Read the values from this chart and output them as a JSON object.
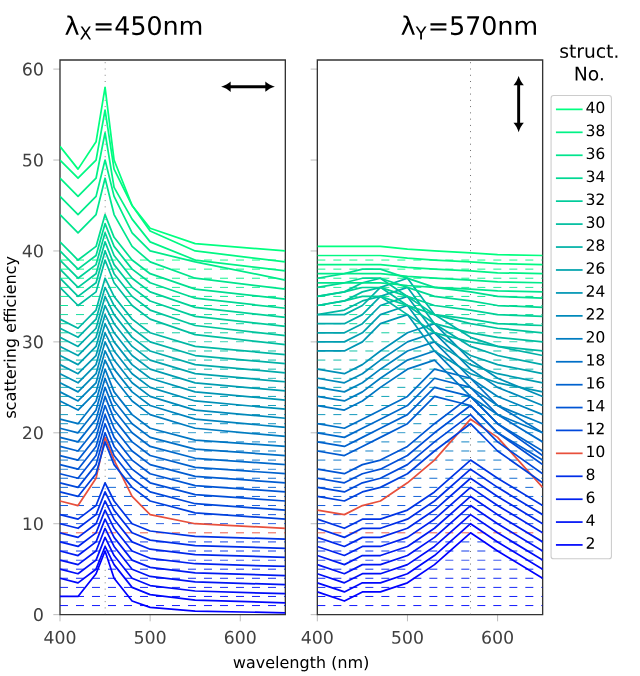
{
  "chart_data": [
    {
      "type": "line",
      "title": "λ$_{X}$=450nm",
      "xlabel": "wavelength (nm)",
      "ylabel": "scattering efficiency",
      "xlim": [
        400,
        650
      ],
      "xticks": [
        400,
        500,
        600
      ],
      "ylim": [
        0,
        61
      ],
      "yticks": [
        0,
        10,
        20,
        30,
        40,
        50,
        60
      ],
      "x": [
        400,
        420,
        440,
        450,
        460,
        480,
        500,
        550,
        650
      ],
      "series": [
        {
          "color": "#0000ff",
          "values": [
            2,
            2,
            4.5,
            7,
            4,
            1.5,
            0.8,
            0.4,
            0.2
          ]
        },
        {
          "color": "#0007fc",
          "values": [
            4,
            3.5,
            5,
            7.5,
            5.5,
            3,
            2.2,
            1.6,
            1.3
          ]
        },
        {
          "color": "#000df8",
          "values": [
            5,
            4.5,
            6,
            8.5,
            6.5,
            4,
            3.2,
            2.6,
            2.3
          ]
        },
        {
          "color": "#0014f5",
          "values": [
            6,
            5.5,
            7,
            9.5,
            7.5,
            5,
            4.2,
            3.6,
            3.3
          ]
        },
        {
          "color": "#001af2",
          "values": [
            7,
            6.5,
            8,
            10.5,
            8.5,
            6,
            5.2,
            4.6,
            4.3
          ]
        },
        {
          "color": "#0021ef",
          "values": [
            8,
            7.5,
            9,
            11.5,
            9.5,
            7,
            6.2,
            5.6,
            5.3
          ]
        },
        {
          "color": "#0027eb",
          "values": [
            9,
            8.5,
            10,
            12.5,
            10.5,
            8,
            7.2,
            6.6,
            6.3
          ]
        },
        {
          "color": "#002ee8",
          "values": [
            10,
            9.5,
            11,
            13.5,
            11.5,
            9,
            8.2,
            7.6,
            7.3
          ]
        },
        {
          "color": "#0034e5",
          "values": [
            11,
            10.5,
            12,
            14.5,
            12.5,
            10,
            9.2,
            8.6,
            8.3
          ]
        },
        {
          "color": "#e8503c",
          "values": [
            12.5,
            12,
            15,
            19.5,
            17,
            13,
            11,
            10,
            9.5
          ]
        },
        {
          "color": "#0041de",
          "values": [
            13.5,
            13,
            15.5,
            19,
            16.5,
            14,
            12.5,
            11.2,
            10.5
          ]
        },
        {
          "color": "#0048db",
          "values": [
            14.5,
            14,
            16.5,
            20,
            17.5,
            15,
            13.5,
            12.2,
            11.5
          ]
        },
        {
          "color": "#004ed8",
          "values": [
            15.5,
            15,
            17.5,
            21,
            18.5,
            16,
            14.5,
            13.2,
            12.5
          ]
        },
        {
          "color": "#0055d4",
          "values": [
            16.5,
            16,
            18.5,
            22,
            19.5,
            17,
            15.5,
            14.2,
            13.5
          ]
        },
        {
          "color": "#005cd1",
          "values": [
            17.5,
            17,
            19.5,
            23,
            20.5,
            18,
            16.5,
            15.2,
            14.5
          ]
        },
        {
          "color": "#0062ce",
          "values": [
            18.5,
            18,
            20.5,
            24,
            21.5,
            19,
            17.5,
            16.2,
            15.5
          ]
        },
        {
          "color": "#0069cb",
          "values": [
            19.5,
            19,
            21.5,
            25,
            22.5,
            20,
            18.5,
            17.2,
            16.5
          ]
        },
        {
          "color": "#006fc7",
          "values": [
            20.5,
            20,
            22.5,
            26,
            23.5,
            21,
            19.5,
            18.2,
            17.5
          ]
        },
        {
          "color": "#0076c4",
          "values": [
            21.5,
            21,
            23.5,
            27,
            24.5,
            22,
            20.5,
            19.2,
            18.5
          ]
        },
        {
          "color": "#007cc1",
          "values": [
            23.5,
            22.5,
            24.5,
            28,
            26,
            23.5,
            22,
            20.5,
            19.6
          ]
        },
        {
          "color": "#0083be",
          "values": [
            24.5,
            23.5,
            25.5,
            29,
            27,
            24.5,
            23,
            21.5,
            20.6
          ]
        },
        {
          "color": "#0089ba",
          "values": [
            25.5,
            24.5,
            26.5,
            30,
            28,
            25.5,
            24,
            22.5,
            21.6
          ]
        },
        {
          "color": "#0090b7",
          "values": [
            26.5,
            25.5,
            27.5,
            31,
            29,
            26.5,
            25,
            23.5,
            22.6
          ]
        },
        {
          "color": "#0096b4",
          "values": [
            27.5,
            26.5,
            28.5,
            32,
            30,
            27.5,
            26,
            24.5,
            23.6
          ]
        },
        {
          "color": "#009db1",
          "values": [
            28.5,
            27.5,
            29.5,
            33,
            31,
            28.5,
            27,
            25.5,
            24.6
          ]
        },
        {
          "color": "#00a3ad",
          "values": [
            29.5,
            28.5,
            30.5,
            34,
            32,
            29.5,
            28,
            26.5,
            25.6
          ]
        },
        {
          "color": "#00aaaa",
          "values": [
            30.5,
            29.5,
            31.5,
            35,
            33,
            30.5,
            29,
            27.5,
            26.6
          ]
        },
        {
          "color": "#00b1a7",
          "values": [
            31.5,
            30.5,
            32.5,
            36,
            34,
            31.5,
            30,
            28.5,
            27.6
          ]
        },
        {
          "color": "#00b7a4",
          "values": [
            32.5,
            31.5,
            33.5,
            37,
            35,
            32.5,
            31,
            29.5,
            28.6
          ]
        },
        {
          "color": "#00bea0",
          "values": [
            36,
            34,
            35.5,
            39,
            36.5,
            34,
            32.5,
            30.8,
            29.7
          ]
        },
        {
          "color": "#00c49d",
          "values": [
            37,
            35,
            36.5,
            40,
            37.5,
            35,
            33.5,
            31.8,
            30.7
          ]
        },
        {
          "color": "#00cb9a",
          "values": [
            38,
            36,
            37.5,
            41,
            38.5,
            36,
            34.5,
            32.8,
            31.7
          ]
        },
        {
          "color": "#00d197",
          "values": [
            39,
            37,
            38.5,
            42,
            39.5,
            37,
            35.5,
            33.8,
            32.7
          ]
        },
        {
          "color": "#00d893",
          "values": [
            40,
            38,
            39.5,
            43,
            40.5,
            38,
            36.5,
            34.8,
            33.7
          ]
        },
        {
          "color": "#00de90",
          "values": [
            41,
            39,
            40.5,
            44,
            41.5,
            39,
            37.5,
            35.8,
            34.7
          ]
        },
        {
          "color": "#00e58d",
          "values": [
            44,
            42,
            44,
            48,
            44,
            40.5,
            38.8,
            37,
            35.8
          ]
        },
        {
          "color": "#00eb8a",
          "values": [
            46,
            44,
            46,
            50,
            46,
            42,
            40,
            38.8,
            36.8
          ]
        },
        {
          "color": "#00f286",
          "values": [
            48,
            46,
            48,
            53,
            47,
            43.5,
            41,
            39,
            37.8
          ]
        },
        {
          "color": "#00f883",
          "values": [
            50,
            48,
            50,
            55.5,
            49,
            45,
            42.2,
            40,
            38.8
          ]
        },
        {
          "color": "#00ff80",
          "values": [
            51.5,
            49,
            52,
            58,
            50,
            45,
            42.5,
            40.8,
            40
          ]
        }
      ],
      "ref_lines": [
        {
          "axis": "x",
          "value": 450,
          "color": "#555555",
          "line_style": "dotted"
        },
        {
          "axis": "y",
          "value": 1,
          "color": "#0007fc",
          "line_style": "dashed"
        },
        {
          "axis": "y",
          "value": 2,
          "color": "#000df8",
          "line_style": "dashed"
        },
        {
          "axis": "y",
          "value": 3,
          "color": "#0014f5",
          "line_style": "dashed"
        },
        {
          "axis": "y",
          "value": 4,
          "color": "#001af2",
          "line_style": "dashed"
        },
        {
          "axis": "y",
          "value": 5,
          "color": "#0021ef",
          "line_style": "dashed"
        },
        {
          "axis": "y",
          "value": 6,
          "color": "#0027eb",
          "line_style": "dashed"
        },
        {
          "axis": "y",
          "value": 7,
          "color": "#002ee8",
          "line_style": "dashed"
        },
        {
          "axis": "y",
          "value": 8,
          "color": "#0034e5",
          "line_style": "dashed"
        },
        {
          "axis": "y",
          "value": 9,
          "color": "#e8503c",
          "line_style": "dashed"
        },
        {
          "axis": "y",
          "value": 10,
          "color": "#0041de",
          "line_style": "dashed"
        },
        {
          "axis": "y",
          "value": 11,
          "color": "#0048db",
          "line_style": "dashed"
        },
        {
          "axis": "y",
          "value": 12,
          "color": "#004ed8",
          "line_style": "dashed"
        },
        {
          "axis": "y",
          "value": 13,
          "color": "#0055d4",
          "line_style": "dashed"
        },
        {
          "axis": "y",
          "value": 14,
          "color": "#005cd1",
          "line_style": "dashed"
        },
        {
          "axis": "y",
          "value": 15,
          "color": "#0062ce",
          "line_style": "dashed"
        },
        {
          "axis": "y",
          "value": 16,
          "color": "#0069cb",
          "line_style": "dashed"
        },
        {
          "axis": "y",
          "value": 17,
          "color": "#006fc7",
          "line_style": "dashed"
        },
        {
          "axis": "y",
          "value": 18,
          "color": "#0076c4",
          "line_style": "dashed"
        },
        {
          "axis": "y",
          "value": 19,
          "color": "#007cc1",
          "line_style": "dashed"
        },
        {
          "axis": "y",
          "value": 20,
          "color": "#0083be",
          "line_style": "dashed"
        },
        {
          "axis": "y",
          "value": 21,
          "color": "#0089ba",
          "line_style": "dashed"
        },
        {
          "axis": "y",
          "value": 22,
          "color": "#0090b7",
          "line_style": "dashed"
        },
        {
          "axis": "y",
          "value": 23,
          "color": "#0096b4",
          "line_style": "dashed"
        },
        {
          "axis": "y",
          "value": 24,
          "color": "#009db1",
          "line_style": "dashed"
        },
        {
          "axis": "y",
          "value": 25,
          "color": "#00a3ad",
          "line_style": "dashed"
        },
        {
          "axis": "y",
          "value": 26,
          "color": "#00aaaa",
          "line_style": "dashed"
        },
        {
          "axis": "y",
          "value": 27,
          "color": "#00b1a7",
          "line_style": "dashed"
        },
        {
          "axis": "y",
          "value": 28,
          "color": "#00b7a4",
          "line_style": "dashed"
        },
        {
          "axis": "y",
          "value": 29,
          "color": "#00bea0",
          "line_style": "dashed"
        },
        {
          "axis": "y",
          "value": 30,
          "color": "#00c49d",
          "line_style": "dashed"
        },
        {
          "axis": "y",
          "value": 31,
          "color": "#00cb9a",
          "line_style": "dashed"
        },
        {
          "axis": "y",
          "value": 32,
          "color": "#00d197",
          "line_style": "dashed"
        },
        {
          "axis": "y",
          "value": 33,
          "color": "#00d893",
          "line_style": "dashed"
        },
        {
          "axis": "y",
          "value": 34,
          "color": "#00de90",
          "line_style": "dashed"
        },
        {
          "axis": "y",
          "value": 35,
          "color": "#00e58d",
          "line_style": "dashed"
        },
        {
          "axis": "y",
          "value": 36,
          "color": "#00eb8a",
          "line_style": "dashed"
        },
        {
          "axis": "y",
          "value": 37,
          "color": "#00f286",
          "line_style": "dashed"
        },
        {
          "axis": "y",
          "value": 38,
          "color": "#00f883",
          "line_style": "dashed"
        },
        {
          "axis": "y",
          "value": 39,
          "color": "#00ff80",
          "line_style": "dashed"
        }
      ]
    },
    {
      "type": "line",
      "title": "λ$_{Y}$=570nm",
      "legend_title": "struct. No.",
      "legend": "right",
      "tick_labels": "x",
      "xlim": [
        400,
        650
      ],
      "xticks": [
        400,
        500,
        600
      ],
      "ylim": [
        0,
        61
      ],
      "yticks": [
        0,
        10,
        20,
        30,
        40,
        50,
        60
      ],
      "x": [
        400,
        430,
        450,
        470,
        500,
        530,
        570,
        600,
        650
      ],
      "series": [
        {
          "color": "#0000ff",
          "values": [
            2.5,
            1.5,
            2.5,
            2.5,
            3.5,
            5.5,
            9,
            7,
            4
          ]
        },
        {
          "name": "2",
          "color": "#0007fc",
          "values": [
            3.5,
            2.5,
            3.5,
            3.5,
            4.5,
            6.5,
            10,
            8,
            5
          ]
        },
        {
          "color": "#000df8",
          "values": [
            4.5,
            3.5,
            4.5,
            4.5,
            5.5,
            7.5,
            11,
            9,
            6
          ]
        },
        {
          "name": "4",
          "color": "#0014f5",
          "values": [
            5.5,
            4.5,
            5.5,
            5.5,
            6.5,
            8.5,
            12,
            10,
            7
          ]
        },
        {
          "color": "#001af2",
          "values": [
            6.5,
            5.5,
            6.5,
            6.5,
            7.5,
            9.5,
            13,
            11,
            8
          ]
        },
        {
          "name": "6",
          "color": "#0021ef",
          "values": [
            7.5,
            6.5,
            7.5,
            7.5,
            8.5,
            10.5,
            14,
            12,
            9
          ]
        },
        {
          "color": "#0027eb",
          "values": [
            8.5,
            7.5,
            8.5,
            8.5,
            9.5,
            11.5,
            15,
            13,
            10
          ]
        },
        {
          "name": "8",
          "color": "#002ee8",
          "values": [
            9.5,
            8.5,
            9.5,
            9.5,
            10.5,
            12.5,
            16,
            14,
            11
          ]
        },
        {
          "color": "#0034e5",
          "values": [
            10.5,
            9.5,
            10.5,
            10.5,
            11.5,
            13.5,
            17,
            15,
            12
          ]
        },
        {
          "name": "10",
          "color": "#e8503c",
          "values": [
            11.5,
            11,
            12,
            12.5,
            14.5,
            17,
            21.5,
            19.5,
            14
          ]
        },
        {
          "color": "#0041de",
          "values": [
            13,
            12.5,
            13.5,
            14,
            15.5,
            18,
            21,
            18,
            14.5
          ]
        },
        {
          "name": "12",
          "color": "#0048db",
          "values": [
            14,
            13.5,
            14.5,
            15,
            16.5,
            19,
            22,
            19,
            15.5
          ]
        },
        {
          "color": "#004ed8",
          "values": [
            15,
            14.5,
            15.5,
            16,
            17.5,
            20,
            23,
            20,
            16.5
          ]
        },
        {
          "name": "14",
          "color": "#0055d4",
          "values": [
            16,
            15.5,
            16.5,
            17,
            18.5,
            21,
            24,
            21,
            17.5
          ]
        },
        {
          "color": "#005cd1",
          "values": [
            18,
            17.5,
            18.5,
            19.5,
            21,
            24,
            23,
            20,
            17
          ]
        },
        {
          "name": "16",
          "color": "#0062ce",
          "values": [
            19,
            18.5,
            19.5,
            20.5,
            22,
            25,
            24,
            21,
            18
          ]
        },
        {
          "color": "#0069cb",
          "values": [
            20,
            19.5,
            20.5,
            21.5,
            23,
            26,
            25,
            22,
            19
          ]
        },
        {
          "name": "18",
          "color": "#006fc7",
          "values": [
            21,
            20.5,
            21.5,
            22.5,
            24,
            27,
            26,
            23,
            20
          ]
        },
        {
          "color": "#0076c4",
          "values": [
            23,
            22.5,
            23.5,
            25,
            27,
            28,
            24,
            22,
            20
          ]
        },
        {
          "name": "20",
          "color": "#007cc1",
          "values": [
            24,
            23.5,
            24.5,
            26,
            28,
            29,
            25,
            23,
            21
          ]
        },
        {
          "color": "#0083be",
          "values": [
            25,
            24.5,
            25.5,
            27,
            29,
            30,
            26,
            24,
            22
          ]
        },
        {
          "name": "22",
          "color": "#0089ba",
          "values": [
            26,
            25.5,
            26.5,
            28,
            30,
            31,
            27,
            25,
            23
          ]
        },
        {
          "color": "#0090b7",
          "values": [
            27,
            26.5,
            27.5,
            29,
            31,
            32,
            28,
            26,
            24
          ]
        },
        {
          "name": "24",
          "color": "#0096b4",
          "values": [
            29,
            29,
            30,
            32,
            33,
            29,
            26.5,
            25.5,
            24.5
          ]
        },
        {
          "color": "#009db1",
          "values": [
            30,
            30,
            31,
            33,
            34,
            30,
            27.5,
            26.5,
            25.5
          ]
        },
        {
          "name": "26",
          "color": "#00a3ad",
          "values": [
            31,
            31,
            32,
            34,
            35,
            31,
            28.5,
            27.5,
            26.5
          ]
        },
        {
          "color": "#00aaaa",
          "values": [
            32,
            32,
            33,
            35,
            36,
            32,
            29.5,
            28.5,
            27.5
          ]
        },
        {
          "name": "28",
          "color": "#00b1a7",
          "values": [
            33,
            33,
            34,
            36,
            37,
            33,
            30.5,
            29.5,
            28.5
          ]
        },
        {
          "color": "#00b7a4",
          "values": [
            33,
            33.5,
            34.5,
            35,
            33,
            31,
            30,
            29.5,
            29
          ]
        },
        {
          "name": "30",
          "color": "#00bea0",
          "values": [
            34,
            34.5,
            35.5,
            36,
            34,
            32,
            31,
            30.5,
            30
          ]
        },
        {
          "color": "#00c49d",
          "values": [
            35,
            35.5,
            36.5,
            37,
            35,
            33,
            32,
            31.5,
            31
          ]
        },
        {
          "name": "32",
          "color": "#00cb9a",
          "values": [
            34,
            34.5,
            35,
            35,
            34,
            33,
            32.5,
            32,
            31.8
          ]
        },
        {
          "color": "#00d197",
          "values": [
            35,
            35.5,
            36,
            36,
            35,
            34,
            33.5,
            33,
            32.8
          ]
        },
        {
          "name": "34",
          "color": "#00d893",
          "values": [
            36,
            36.5,
            37,
            37,
            36,
            35,
            34.5,
            34,
            33.8
          ]
        },
        {
          "color": "#00de90",
          "values": [
            37,
            37.5,
            38,
            38,
            37,
            36,
            35.5,
            35,
            34.8
          ]
        },
        {
          "name": "36",
          "color": "#00e58d",
          "values": [
            36.5,
            36.5,
            36.5,
            36.5,
            36.2,
            36,
            35.8,
            35.6,
            35.5
          ]
        },
        {
          "color": "#00eb8a",
          "values": [
            37.5,
            37.5,
            37.5,
            37.5,
            37.2,
            37,
            36.8,
            36.6,
            36.5
          ]
        },
        {
          "name": "38",
          "color": "#00f286",
          "values": [
            38.5,
            38.5,
            38.5,
            38.5,
            38.2,
            38,
            37.8,
            37.6,
            37.5
          ]
        },
        {
          "color": "#00f883",
          "values": [
            39.5,
            39.5,
            39.5,
            39.5,
            39.2,
            39,
            38.8,
            38.6,
            38.5
          ]
        },
        {
          "name": "40",
          "color": "#00ff80",
          "values": [
            40.5,
            40.5,
            40.5,
            40.5,
            40.2,
            40,
            39.8,
            39.6,
            39.5
          ]
        }
      ],
      "ref_lines": [
        {
          "axis": "x",
          "value": 570,
          "color": "#555555",
          "line_style": "dotted"
        },
        {
          "axis": "y",
          "value": 1,
          "color": "#0007fc",
          "line_style": "dashed"
        },
        {
          "axis": "y",
          "value": 2,
          "color": "#000df8",
          "line_style": "dashed"
        },
        {
          "axis": "y",
          "value": 3,
          "color": "#0014f5",
          "line_style": "dashed"
        },
        {
          "axis": "y",
          "value": 4,
          "color": "#001af2",
          "line_style": "dashed"
        },
        {
          "axis": "y",
          "value": 5,
          "color": "#0021ef",
          "line_style": "dashed"
        },
        {
          "axis": "y",
          "value": 6,
          "color": "#0027eb",
          "line_style": "dashed"
        },
        {
          "axis": "y",
          "value": 7,
          "color": "#002ee8",
          "line_style": "dashed"
        },
        {
          "axis": "y",
          "value": 8,
          "color": "#0034e5",
          "line_style": "dashed"
        },
        {
          "axis": "y",
          "value": 9,
          "color": "#e8503c",
          "line_style": "dashed"
        },
        {
          "axis": "y",
          "value": 10,
          "color": "#0041de",
          "line_style": "dashed"
        },
        {
          "axis": "y",
          "value": 11,
          "color": "#0048db",
          "line_style": "dashed"
        },
        {
          "axis": "y",
          "value": 12,
          "color": "#004ed8",
          "line_style": "dashed"
        },
        {
          "axis": "y",
          "value": 13,
          "color": "#0055d4",
          "line_style": "dashed"
        },
        {
          "axis": "y",
          "value": 14,
          "color": "#005cd1",
          "line_style": "dashed"
        },
        {
          "axis": "y",
          "value": 15,
          "color": "#0062ce",
          "line_style": "dashed"
        },
        {
          "axis": "y",
          "value": 16,
          "color": "#0069cb",
          "line_style": "dashed"
        },
        {
          "axis": "y",
          "value": 17,
          "color": "#006fc7",
          "line_style": "dashed"
        },
        {
          "axis": "y",
          "value": 18,
          "color": "#0076c4",
          "line_style": "dashed"
        },
        {
          "axis": "y",
          "value": 19,
          "color": "#007cc1",
          "line_style": "dashed"
        },
        {
          "axis": "y",
          "value": 20,
          "color": "#0083be",
          "line_style": "dashed"
        },
        {
          "axis": "y",
          "value": 21,
          "color": "#0089ba",
          "line_style": "dashed"
        },
        {
          "axis": "y",
          "value": 22,
          "color": "#0090b7",
          "line_style": "dashed"
        },
        {
          "axis": "y",
          "value": 23,
          "color": "#0096b4",
          "line_style": "dashed"
        },
        {
          "axis": "y",
          "value": 24,
          "color": "#009db1",
          "line_style": "dashed"
        },
        {
          "axis": "y",
          "value": 25,
          "color": "#00a3ad",
          "line_style": "dashed"
        },
        {
          "axis": "y",
          "value": 26,
          "color": "#00aaaa",
          "line_style": "dashed"
        },
        {
          "axis": "y",
          "value": 27,
          "color": "#00b1a7",
          "line_style": "dashed"
        },
        {
          "axis": "y",
          "value": 28,
          "color": "#00b7a4",
          "line_style": "dashed"
        },
        {
          "axis": "y",
          "value": 29,
          "color": "#00bea0",
          "line_style": "dashed"
        },
        {
          "axis": "y",
          "value": 30,
          "color": "#00c49d",
          "line_style": "dashed"
        },
        {
          "axis": "y",
          "value": 31,
          "color": "#00cb9a",
          "line_style": "dashed"
        },
        {
          "axis": "y",
          "value": 32,
          "color": "#00d197",
          "line_style": "dashed"
        },
        {
          "axis": "y",
          "value": 33,
          "color": "#00d893",
          "line_style": "dashed"
        },
        {
          "axis": "y",
          "value": 34,
          "color": "#00de90",
          "line_style": "dashed"
        },
        {
          "axis": "y",
          "value": 35,
          "color": "#00e58d",
          "line_style": "dashed"
        },
        {
          "axis": "y",
          "value": 36,
          "color": "#00eb8a",
          "line_style": "dashed"
        },
        {
          "axis": "y",
          "value": 37,
          "color": "#00f286",
          "line_style": "dashed"
        },
        {
          "axis": "y",
          "value": 38,
          "color": "#00f883",
          "line_style": "dashed"
        },
        {
          "axis": "y",
          "value": 39,
          "color": "#00ff80",
          "line_style": "dashed"
        }
      ]
    }
  ]
}
